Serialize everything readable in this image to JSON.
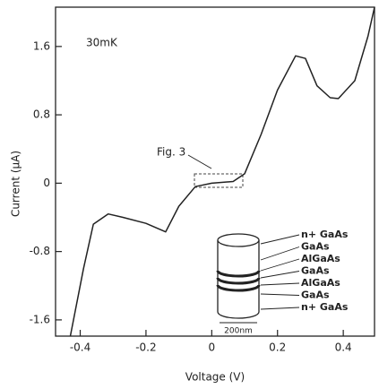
{
  "chart_data": {
    "type": "line",
    "x_label": "Voltage (V)",
    "y_label": "Current (μA)",
    "x": [
      -0.43,
      -0.39,
      -0.36,
      -0.315,
      -0.27,
      -0.2,
      -0.14,
      -0.1,
      -0.05,
      0,
      0.065,
      0.1,
      0.15,
      0.2,
      0.255,
      0.285,
      0.32,
      0.36,
      0.385,
      0.435,
      0.475,
      0.495
    ],
    "values": [
      -1.79,
      -1.0,
      -0.48,
      -0.36,
      -0.4,
      -0.47,
      -0.57,
      -0.27,
      -0.04,
      0,
      0.02,
      0.11,
      0.57,
      1.09,
      1.49,
      1.46,
      1.14,
      1.0,
      0.99,
      1.2,
      1.72,
      2.06
    ],
    "color": "#222222",
    "xlim": [
      -0.475,
      0.495
    ],
    "ylim": [
      -1.79,
      2.06
    ],
    "xticks": [
      -0.4,
      -0.2,
      0,
      0.2,
      0.4
    ],
    "yticks": [
      -1.6,
      -0.8,
      0,
      0.8,
      1.6
    ],
    "annotations": {
      "temperature": "30mK",
      "figure_ref": "Fig. 3"
    },
    "inset": {
      "layers": [
        "n+ GaAs",
        "GaAs",
        "AlGaAs",
        "GaAs",
        "AlGaAs",
        "GaAs",
        "n+ GaAs"
      ],
      "scale": "200nm"
    }
  }
}
